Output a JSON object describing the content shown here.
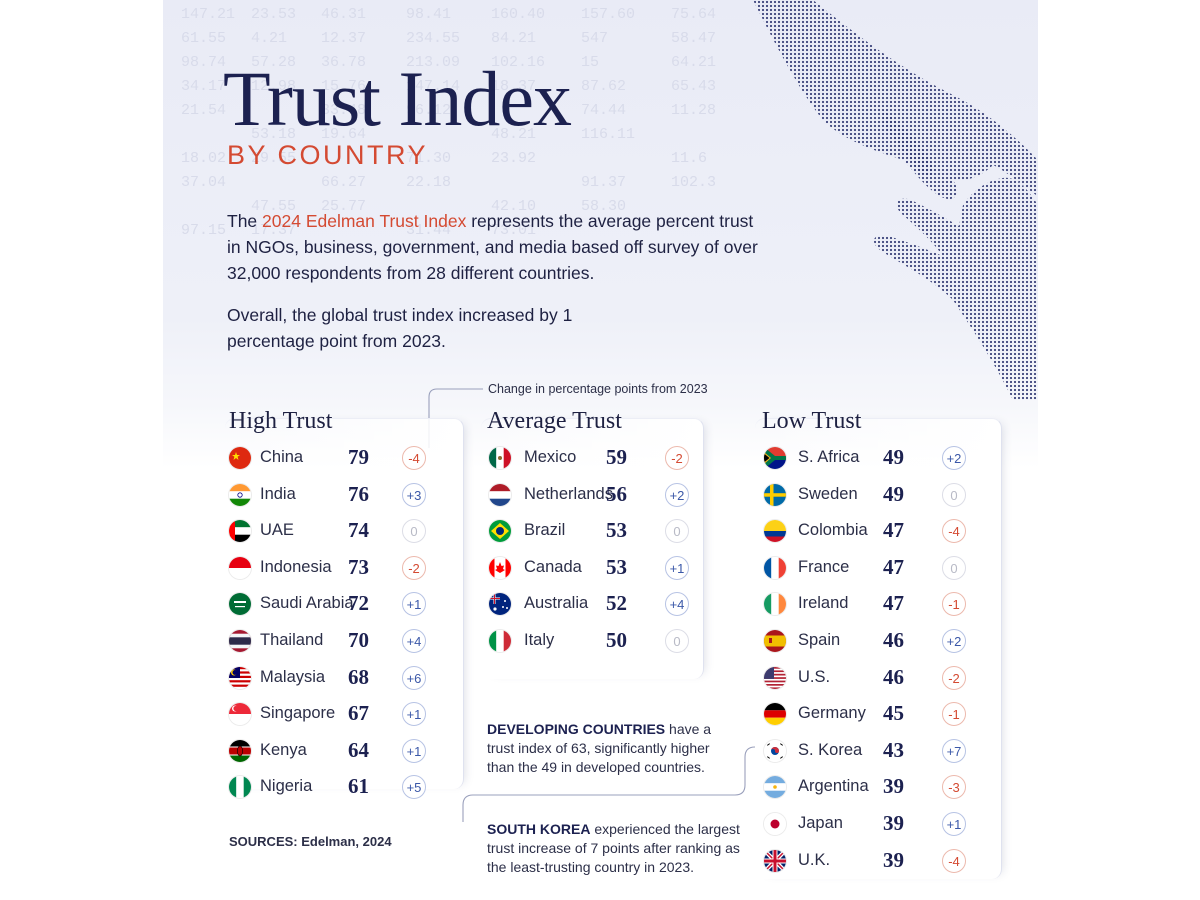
{
  "title": "Trust Index",
  "subtitle": "BY COUNTRY",
  "intro": {
    "before": "The ",
    "highlight": "2024 Edelman Trust Index",
    "after": " represents the average percent trust in NGOs, business, government, and media based off survey of over 32,000 respondents from 28 different countries."
  },
  "overall": "Overall, the global trust index increased by 1 percentage point from 2023.",
  "legend_note": "Change in percentage points from 2023",
  "background_numbers": [
    "147.21",
    "23.53",
    "46.31",
    "98.41",
    "160.40",
    "157.60",
    "75.64",
    "61.55",
    "4.21",
    "12.37",
    "234.55",
    "84.21",
    "547",
    "58.47",
    "98.74",
    "57.28",
    "36.78",
    "213.09",
    "102.16",
    "15",
    "64.21",
    "34.17",
    "12.98",
    "15.76",
    "147.14",
    "18.37",
    "87.62",
    "65.43",
    "21.54",
    "33.48",
    "96.12",
    "74.44",
    "11.28",
    "53.18",
    "19.64",
    "48.21",
    "116.11",
    "18.02",
    "29.55",
    "71.30",
    "23.92",
    "11.6",
    "37.04",
    "66.27",
    "22.18",
    "91.37",
    "102.3",
    "47.55",
    "25.77",
    "42.10",
    "58.30",
    "97.15",
    "17.37",
    "31.44",
    "73.01"
  ],
  "colors": {
    "navy": "#1c2150",
    "accent_orange": "#d44a32",
    "up": "#3b58a8",
    "down": "#d44a32",
    "zero": "#b8bac6"
  },
  "chart_data": {
    "type": "table",
    "title": "Trust Index",
    "columns": [
      "country",
      "trust_index",
      "change_from_2023"
    ],
    "groups": [
      {
        "name": "High Trust",
        "rows": [
          {
            "country": "China",
            "flag": "china-flag-icon",
            "score": 79,
            "change": "-4",
            "dir": "down"
          },
          {
            "country": "India",
            "flag": "india-flag-icon",
            "score": 76,
            "change": "+3",
            "dir": "up"
          },
          {
            "country": "UAE",
            "flag": "uae-flag-icon",
            "score": 74,
            "change": "0",
            "dir": "zero"
          },
          {
            "country": "Indonesia",
            "flag": "indonesia-flag-icon",
            "score": 73,
            "change": "-2",
            "dir": "down"
          },
          {
            "country": "Saudi Arabia",
            "flag": "saudi-arabia-flag-icon",
            "score": 72,
            "change": "+1",
            "dir": "up"
          },
          {
            "country": "Thailand",
            "flag": "thailand-flag-icon",
            "score": 70,
            "change": "+4",
            "dir": "up"
          },
          {
            "country": "Malaysia",
            "flag": "malaysia-flag-icon",
            "score": 68,
            "change": "+6",
            "dir": "up"
          },
          {
            "country": "Singapore",
            "flag": "singapore-flag-icon",
            "score": 67,
            "change": "+1",
            "dir": "up"
          },
          {
            "country": "Kenya",
            "flag": "kenya-flag-icon",
            "score": 64,
            "change": "+1",
            "dir": "up"
          },
          {
            "country": "Nigeria",
            "flag": "nigeria-flag-icon",
            "score": 61,
            "change": "+5",
            "dir": "up"
          }
        ]
      },
      {
        "name": "Average Trust",
        "rows": [
          {
            "country": "Mexico",
            "flag": "mexico-flag-icon",
            "score": 59,
            "change": "-2",
            "dir": "down"
          },
          {
            "country": "Netherlands",
            "flag": "netherlands-flag-icon",
            "score": 56,
            "change": "+2",
            "dir": "up"
          },
          {
            "country": "Brazil",
            "flag": "brazil-flag-icon",
            "score": 53,
            "change": "0",
            "dir": "zero"
          },
          {
            "country": "Canada",
            "flag": "canada-flag-icon",
            "score": 53,
            "change": "+1",
            "dir": "up"
          },
          {
            "country": "Australia",
            "flag": "australia-flag-icon",
            "score": 52,
            "change": "+4",
            "dir": "up"
          },
          {
            "country": "Italy",
            "flag": "italy-flag-icon",
            "score": 50,
            "change": "0",
            "dir": "zero"
          }
        ]
      },
      {
        "name": "Low Trust",
        "rows": [
          {
            "country": "S. Africa",
            "flag": "south-africa-flag-icon",
            "score": 49,
            "change": "+2",
            "dir": "up"
          },
          {
            "country": "Sweden",
            "flag": "sweden-flag-icon",
            "score": 49,
            "change": "0",
            "dir": "zero"
          },
          {
            "country": "Colombia",
            "flag": "colombia-flag-icon",
            "score": 47,
            "change": "-4",
            "dir": "down"
          },
          {
            "country": "France",
            "flag": "france-flag-icon",
            "score": 47,
            "change": "0",
            "dir": "zero"
          },
          {
            "country": "Ireland",
            "flag": "ireland-flag-icon",
            "score": 47,
            "change": "-1",
            "dir": "down"
          },
          {
            "country": "Spain",
            "flag": "spain-flag-icon",
            "score": 46,
            "change": "+2",
            "dir": "up"
          },
          {
            "country": "U.S.",
            "flag": "us-flag-icon",
            "score": 46,
            "change": "-2",
            "dir": "down"
          },
          {
            "country": "Germany",
            "flag": "germany-flag-icon",
            "score": 45,
            "change": "-1",
            "dir": "down"
          },
          {
            "country": "S. Korea",
            "flag": "south-korea-flag-icon",
            "score": 43,
            "change": "+7",
            "dir": "up"
          },
          {
            "country": "Argentina",
            "flag": "argentina-flag-icon",
            "score": 39,
            "change": "-3",
            "dir": "down"
          },
          {
            "country": "Japan",
            "flag": "japan-flag-icon",
            "score": 39,
            "change": "+1",
            "dir": "up"
          },
          {
            "country": "U.K.",
            "flag": "uk-flag-icon",
            "score": 39,
            "change": "-4",
            "dir": "down"
          }
        ]
      }
    ]
  },
  "notes": {
    "developing": {
      "bold": "DEVELOPING COUNTRIES",
      "text": " have a trust index of 63, significantly higher than the 49 in developed countries."
    },
    "korea": {
      "bold": "SOUTH KOREA",
      "text": " experienced the largest trust increase of 7 points after ranking as the least-trusting country in 2023."
    }
  },
  "sources": "SOURCES: Edelman, 2024"
}
